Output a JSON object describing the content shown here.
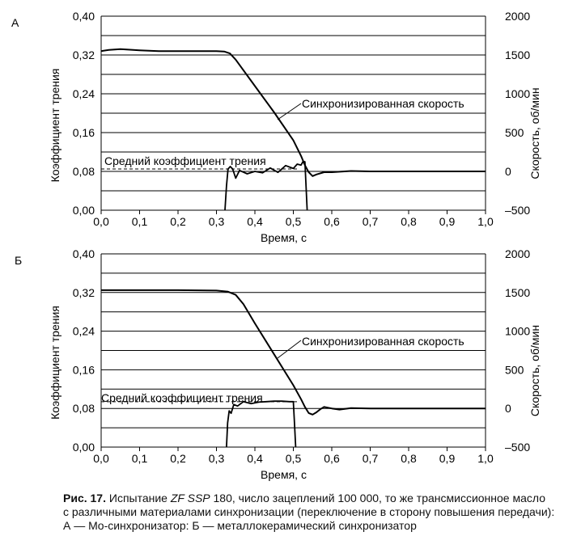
{
  "chart_data": [
    {
      "panel_label": "А",
      "type": "line",
      "xlabel": "Время, с",
      "ylabel": "Коэффициент трения",
      "y2label": "Скорость, об/мин",
      "xlim": [
        0,
        1.0
      ],
      "ylim": [
        0,
        0.4
      ],
      "y2lim": [
        -500,
        2000
      ],
      "x_ticks": [
        "0,0",
        "0,1",
        "0,2",
        "0,3",
        "0,4",
        "0,5",
        "0,6",
        "0,7",
        "0,8",
        "0,9",
        "1,0"
      ],
      "y_ticks": [
        "0,00",
        "0,08",
        "0,16",
        "0,24",
        "0,32",
        "0,40"
      ],
      "y2_ticks": [
        "-500",
        "0",
        "500",
        "1000",
        "1500",
        "2000"
      ],
      "grid": "horizontal",
      "annotations": {
        "speed": "Синхронизированная скорость",
        "mean_friction": "Средний коэффициент трения"
      },
      "mean_friction_value": 0.085,
      "series": [
        {
          "role": "speed",
          "axis": "right",
          "x": [
            0.0,
            0.02,
            0.05,
            0.1,
            0.15,
            0.2,
            0.25,
            0.3,
            0.32,
            0.335,
            0.35,
            0.4,
            0.45,
            0.5,
            0.52,
            0.53,
            0.54,
            0.55,
            0.56,
            0.58,
            0.6,
            0.65,
            0.7,
            0.8,
            0.9,
            1.0
          ],
          "y": [
            1550,
            1565,
            1575,
            1560,
            1550,
            1550,
            1550,
            1550,
            1545,
            1520,
            1440,
            1100,
            760,
            400,
            200,
            80,
            -10,
            -60,
            -40,
            -10,
            -10,
            5,
            0,
            0,
            0,
            0
          ]
        },
        {
          "role": "friction",
          "axis": "left",
          "x": [
            0.322,
            0.326,
            0.33,
            0.336,
            0.342,
            0.35,
            0.36,
            0.38,
            0.4,
            0.42,
            0.44,
            0.46,
            0.48,
            0.5,
            0.51,
            0.52,
            0.525,
            0.53,
            0.533,
            0.536
          ],
          "y": [
            0.0,
            0.05,
            0.085,
            0.09,
            0.085,
            0.066,
            0.082,
            0.075,
            0.08,
            0.077,
            0.087,
            0.078,
            0.092,
            0.086,
            0.095,
            0.093,
            0.1,
            0.1,
            0.05,
            0.0
          ]
        }
      ]
    },
    {
      "panel_label": "Б",
      "type": "line",
      "xlabel": "Время, с",
      "ylabel": "Коэффициент трения",
      "y2label": "Скорость, об/мин",
      "xlim": [
        0,
        1.0
      ],
      "ylim": [
        0,
        0.4
      ],
      "y2lim": [
        -500,
        2000
      ],
      "x_ticks": [
        "0,0",
        "0,1",
        "0,2",
        "0,3",
        "0,4",
        "0,5",
        "0,6",
        "0,7",
        "0,8",
        "0,9",
        "1,0"
      ],
      "y_ticks": [
        "0,00",
        "0,08",
        "0,16",
        "0,24",
        "0,32",
        "0,40"
      ],
      "y2_ticks": [
        "-500",
        "0",
        "500",
        "1000",
        "1500",
        "2000"
      ],
      "grid": "horizontal",
      "annotations": {
        "speed": "Синхронизированная скорость",
        "mean_friction": "Средний коэффициент трения"
      },
      "mean_friction_value": 0.094,
      "series": [
        {
          "role": "speed",
          "axis": "right",
          "x": [
            0.0,
            0.1,
            0.2,
            0.3,
            0.33,
            0.35,
            0.37,
            0.4,
            0.45,
            0.5,
            0.52,
            0.53,
            0.54,
            0.55,
            0.56,
            0.57,
            0.58,
            0.6,
            0.62,
            0.65,
            0.7,
            0.8,
            0.9,
            1.0
          ],
          "y": [
            1530,
            1530,
            1530,
            1525,
            1510,
            1470,
            1350,
            1100,
            700,
            300,
            120,
            20,
            -60,
            -80,
            -50,
            -10,
            20,
            0,
            -15,
            5,
            0,
            0,
            0,
            0
          ]
        },
        {
          "role": "friction",
          "axis": "left",
          "x": [
            0.326,
            0.329,
            0.333,
            0.338,
            0.345,
            0.355,
            0.37,
            0.39,
            0.41,
            0.43,
            0.45,
            0.47,
            0.49,
            0.5,
            0.503,
            0.506
          ],
          "y": [
            0.0,
            0.05,
            0.075,
            0.07,
            0.088,
            0.085,
            0.094,
            0.09,
            0.093,
            0.094,
            0.095,
            0.095,
            0.094,
            0.094,
            0.05,
            0.0
          ]
        }
      ]
    }
  ],
  "caption": {
    "fig_label": "Рис. 17.",
    "line1_pre": "Испытание ",
    "line1_italic": "ZF SSP",
    "line1_post": " 180, число зацеплений 100 000, то же трансмиссионное масло",
    "line2": "с различными материалами синхронизации (переключение в сторону повышения передачи):",
    "line3": "А — Mo-синхронизатор: Б — металлокерамический синхронизатор"
  }
}
